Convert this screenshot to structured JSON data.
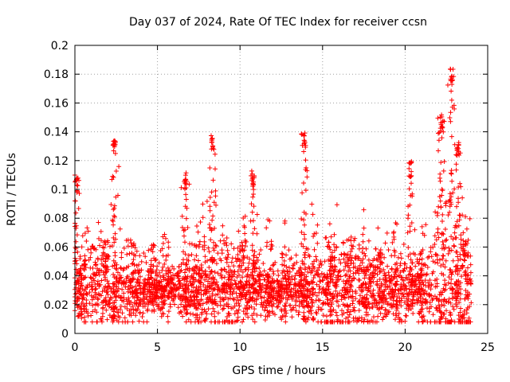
{
  "chart_data": {
    "type": "scatter",
    "title": "Day 037 of 2024, Rate Of TEC Index for receiver ccsn",
    "xlabel": "GPS time / hours",
    "ylabel": "ROTI / TECUs",
    "xlim": [
      0,
      25
    ],
    "ylim": [
      0,
      0.2
    ],
    "x_ticks": [
      0,
      5,
      10,
      15,
      20,
      25
    ],
    "x_tick_labels": [
      "0",
      "5",
      "10",
      "15",
      "20",
      "25"
    ],
    "y_ticks": [
      0,
      0.02,
      0.04,
      0.06,
      0.08,
      0.1,
      0.12,
      0.14,
      0.16,
      0.18,
      0.2
    ],
    "y_tick_labels": [
      "0",
      "0.02",
      "0.04",
      "0.06",
      "0.08",
      "0.1",
      "0.12",
      "0.14",
      "0.16",
      "0.18",
      "0.2"
    ],
    "grid": true,
    "marker": "+",
    "marker_color": "#ff0000",
    "data_range_x": [
      0,
      24
    ],
    "baseline_band": [
      0.01,
      0.05
    ],
    "notable_peaks": [
      {
        "x": 0.1,
        "y": 0.11
      },
      {
        "x": 2.4,
        "y": 0.135
      },
      {
        "x": 6.7,
        "y": 0.112
      },
      {
        "x": 8.3,
        "y": 0.139
      },
      {
        "x": 10.8,
        "y": 0.115
      },
      {
        "x": 13.9,
        "y": 0.14
      },
      {
        "x": 20.3,
        "y": 0.12
      },
      {
        "x": 22.2,
        "y": 0.152
      },
      {
        "x": 22.8,
        "y": 0.185
      },
      {
        "x": 23.2,
        "y": 0.135
      }
    ]
  }
}
